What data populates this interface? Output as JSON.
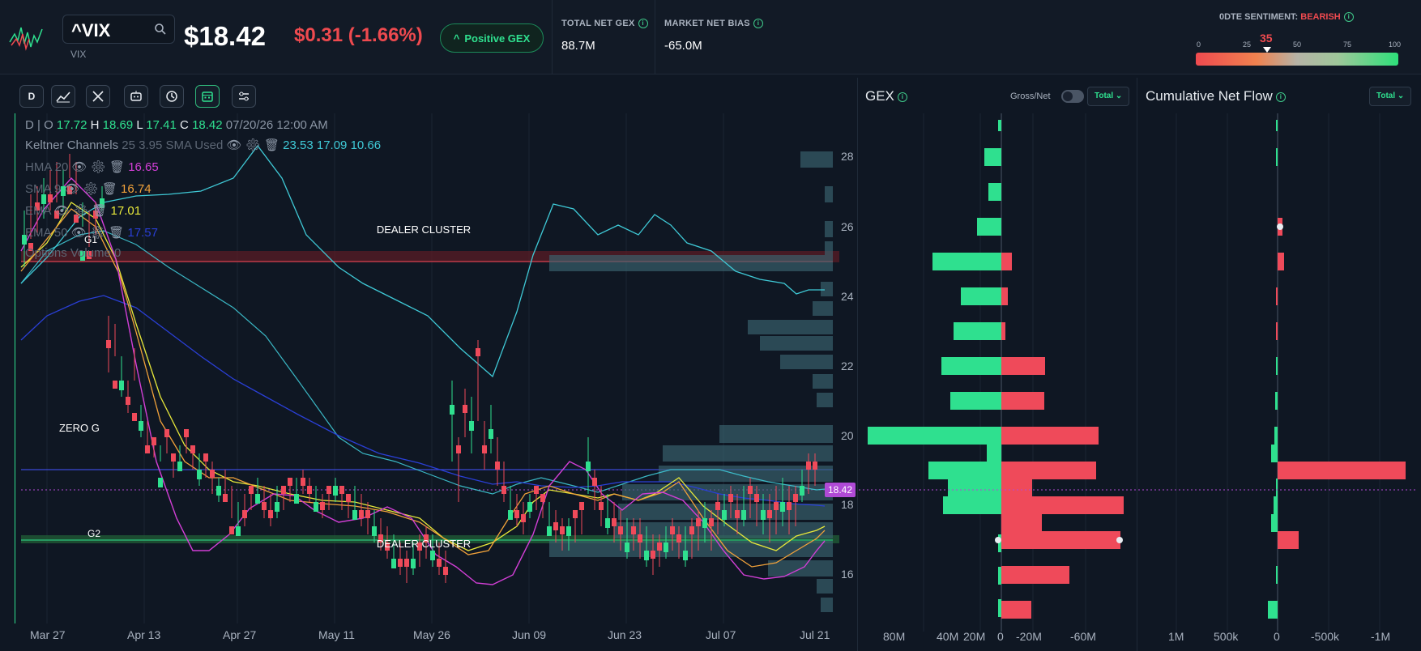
{
  "header": {
    "ticker": "^VIX",
    "ticker_sub": "VIX",
    "price": "$18.42",
    "change": "$0.31 (-1.66%)",
    "gex_badge": "Positive GEX",
    "total_net_gex_label": "TOTAL NET GEX",
    "total_net_gex_value": "88.7M",
    "market_net_bias_label": "MARKET NET BIAS",
    "market_net_bias_value": "-65.0M",
    "sentiment_label": "0DTE SENTIMENT:",
    "sentiment_state": "BEARISH",
    "sentiment_value": "35",
    "sentiment_level": 35,
    "sentiment_scale": [
      "0",
      "25",
      "50",
      "75",
      "100"
    ]
  },
  "toolbar": {
    "interval": "D",
    "buttons": [
      "indicators-icon",
      "drawing-tools-icon",
      "bot-icon",
      "replay-icon",
      "calendar-icon",
      "settings-sliders-icon"
    ]
  },
  "legend": {
    "ohlc_prefix": "D | O",
    "open": "17.72",
    "high_label": "H",
    "high": "18.69",
    "low_label": "L",
    "low": "17.41",
    "close_label": "C",
    "close": "18.42",
    "datetime": "07/20/26 12:00 AM",
    "indicators": [
      {
        "name": "Keltner Channels",
        "params": "25 3.95 SMA Used",
        "values": "23.53 17.09 10.66",
        "color": "#3fc9d6"
      },
      {
        "name": "HMA",
        "params": "20",
        "values": "16.65",
        "color": "#d23fd6"
      },
      {
        "name": "SMA",
        "params": "9",
        "values": "16.74",
        "color": "#f2a23a"
      },
      {
        "name": "EMA",
        "params": "",
        "values": "17.01",
        "color": "#e7e83a"
      },
      {
        "name": "EMA",
        "params": "50",
        "values": "17.57",
        "color": "#2a3fd6"
      }
    ],
    "options_volume": "Options Volume 0"
  },
  "chart": {
    "levels": {
      "dealer_cluster_top": "DEALER CLUSTER",
      "dealer_cluster_bottom": "DEALER CLUSTER",
      "g1": "G1",
      "zero_g": "ZERO G",
      "g2": "G2"
    },
    "price_tag": "18.42",
    "y_ticks": [
      "28",
      "26",
      "24",
      "22",
      "20",
      "18",
      "16"
    ],
    "x_ticks": [
      "Mar 27",
      "Apr 13",
      "Apr 27",
      "May 11",
      "May 26",
      "Jun 09",
      "Jun 23",
      "Jul 07",
      "Jul 21"
    ]
  },
  "gex_panel": {
    "title": "GEX",
    "gross_net_label": "Gross/Net",
    "select": "Total",
    "x_ticks": [
      "80M",
      "40M",
      "20M",
      "0",
      "-20M",
      "-60M"
    ]
  },
  "flow_panel": {
    "title": "Cumulative Net Flow",
    "select": "Total",
    "x_ticks": [
      "1M",
      "500k",
      "0",
      "-500k",
      "-1M"
    ]
  },
  "colors": {
    "up": "#2fe08f",
    "down": "#ef4a5a",
    "background": "#0f1723",
    "accent": "#2fe08f"
  }
}
